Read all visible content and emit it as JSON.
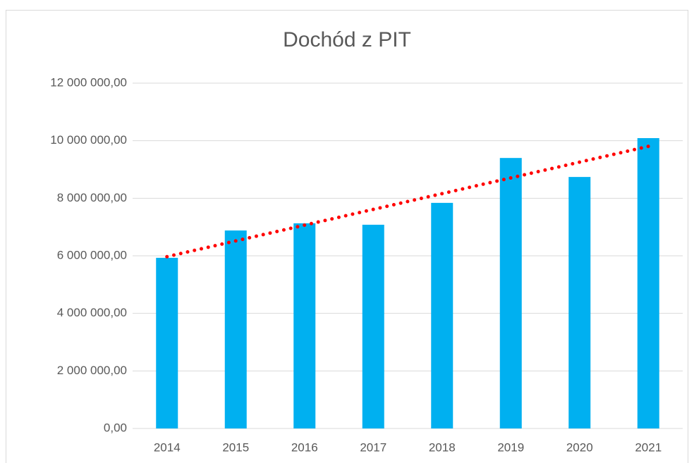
{
  "chart_data": {
    "type": "bar",
    "title": "Dochód z PIT",
    "categories": [
      "2014",
      "2015",
      "2016",
      "2017",
      "2018",
      "2019",
      "2020",
      "2021"
    ],
    "values": [
      5930000,
      6880000,
      7130000,
      7080000,
      7840000,
      9400000,
      8740000,
      10090000
    ],
    "color": "#00b0f0",
    "ylim": [
      0,
      12000000
    ],
    "yticks": [
      {
        "value": 0,
        "label": "0,00"
      },
      {
        "value": 2000000,
        "label": "2 000 000,00"
      },
      {
        "value": 4000000,
        "label": "4 000 000,00"
      },
      {
        "value": 6000000,
        "label": "6 000 000,00"
      },
      {
        "value": 8000000,
        "label": "8 000 000,00"
      },
      {
        "value": 10000000,
        "label": "10 000 000,00"
      },
      {
        "value": 12000000,
        "label": "12 000 000,00"
      }
    ],
    "grid": true,
    "trendline": {
      "type": "linear",
      "color": "#ff0000"
    }
  }
}
